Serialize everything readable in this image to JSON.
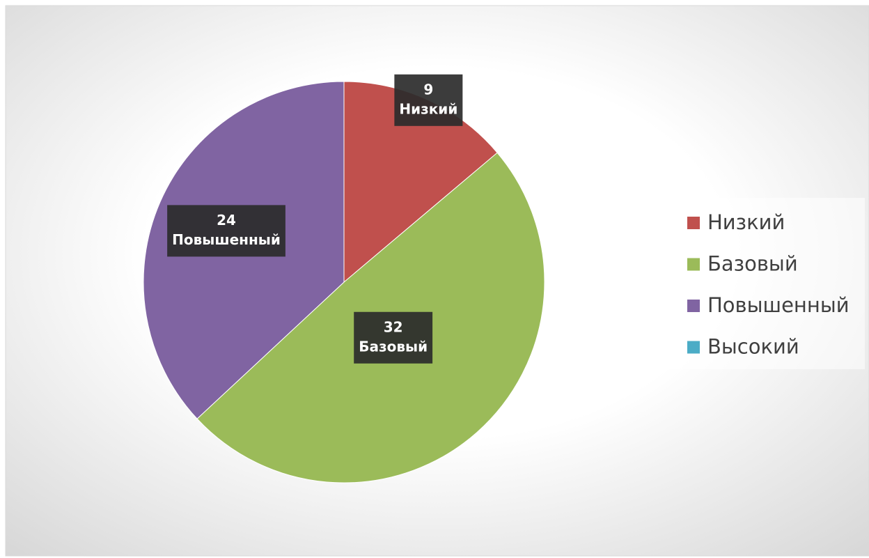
{
  "chart_data": {
    "type": "pie",
    "categories": [
      "Низкий",
      "Базовый",
      "Повышенный",
      "Высокий"
    ],
    "values": [
      9,
      32,
      24,
      0
    ],
    "colors": [
      "#c0504d",
      "#9bbb59",
      "#8064a2",
      "#4bacc6"
    ],
    "legend": "right"
  }
}
